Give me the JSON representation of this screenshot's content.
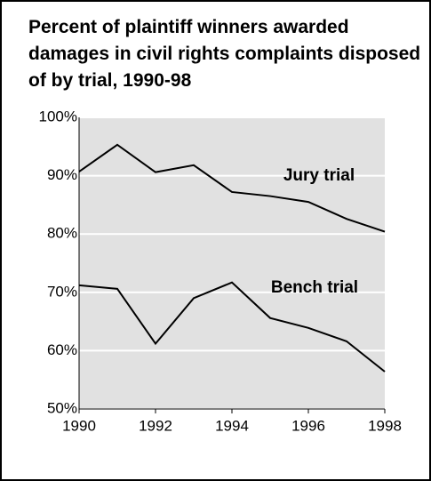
{
  "chart_data": {
    "type": "line",
    "title": "Percent of plaintiff winners awarded damages in civil rights complaints disposed of by trial, 1990-98",
    "x": [
      1990,
      1991,
      1992,
      1993,
      1994,
      1995,
      1996,
      1997,
      1998
    ],
    "series": [
      {
        "name": "Jury trial",
        "color": "#000000",
        "values": [
          90.7,
          95.3,
          90.6,
          91.8,
          87.2,
          86.5,
          85.5,
          82.6,
          80.4
        ]
      },
      {
        "name": "Bench trial",
        "color": "#000000",
        "values": [
          71.2,
          70.6,
          61.2,
          69.0,
          71.7,
          65.6,
          63.9,
          61.6,
          56.4
        ]
      }
    ],
    "xlim": [
      1990,
      1998
    ],
    "xticks": [
      1990,
      1992,
      1994,
      1996,
      1998
    ],
    "ylim": [
      50,
      100
    ],
    "yticks": [
      {
        "value": 50,
        "label": "50%"
      },
      {
        "value": 60,
        "label": "60%"
      },
      {
        "value": 70,
        "label": "70%"
      },
      {
        "value": 80,
        "label": "80%"
      },
      {
        "value": 90,
        "label": "90%"
      },
      {
        "value": 100,
        "label": "100%"
      }
    ],
    "grid": true
  }
}
